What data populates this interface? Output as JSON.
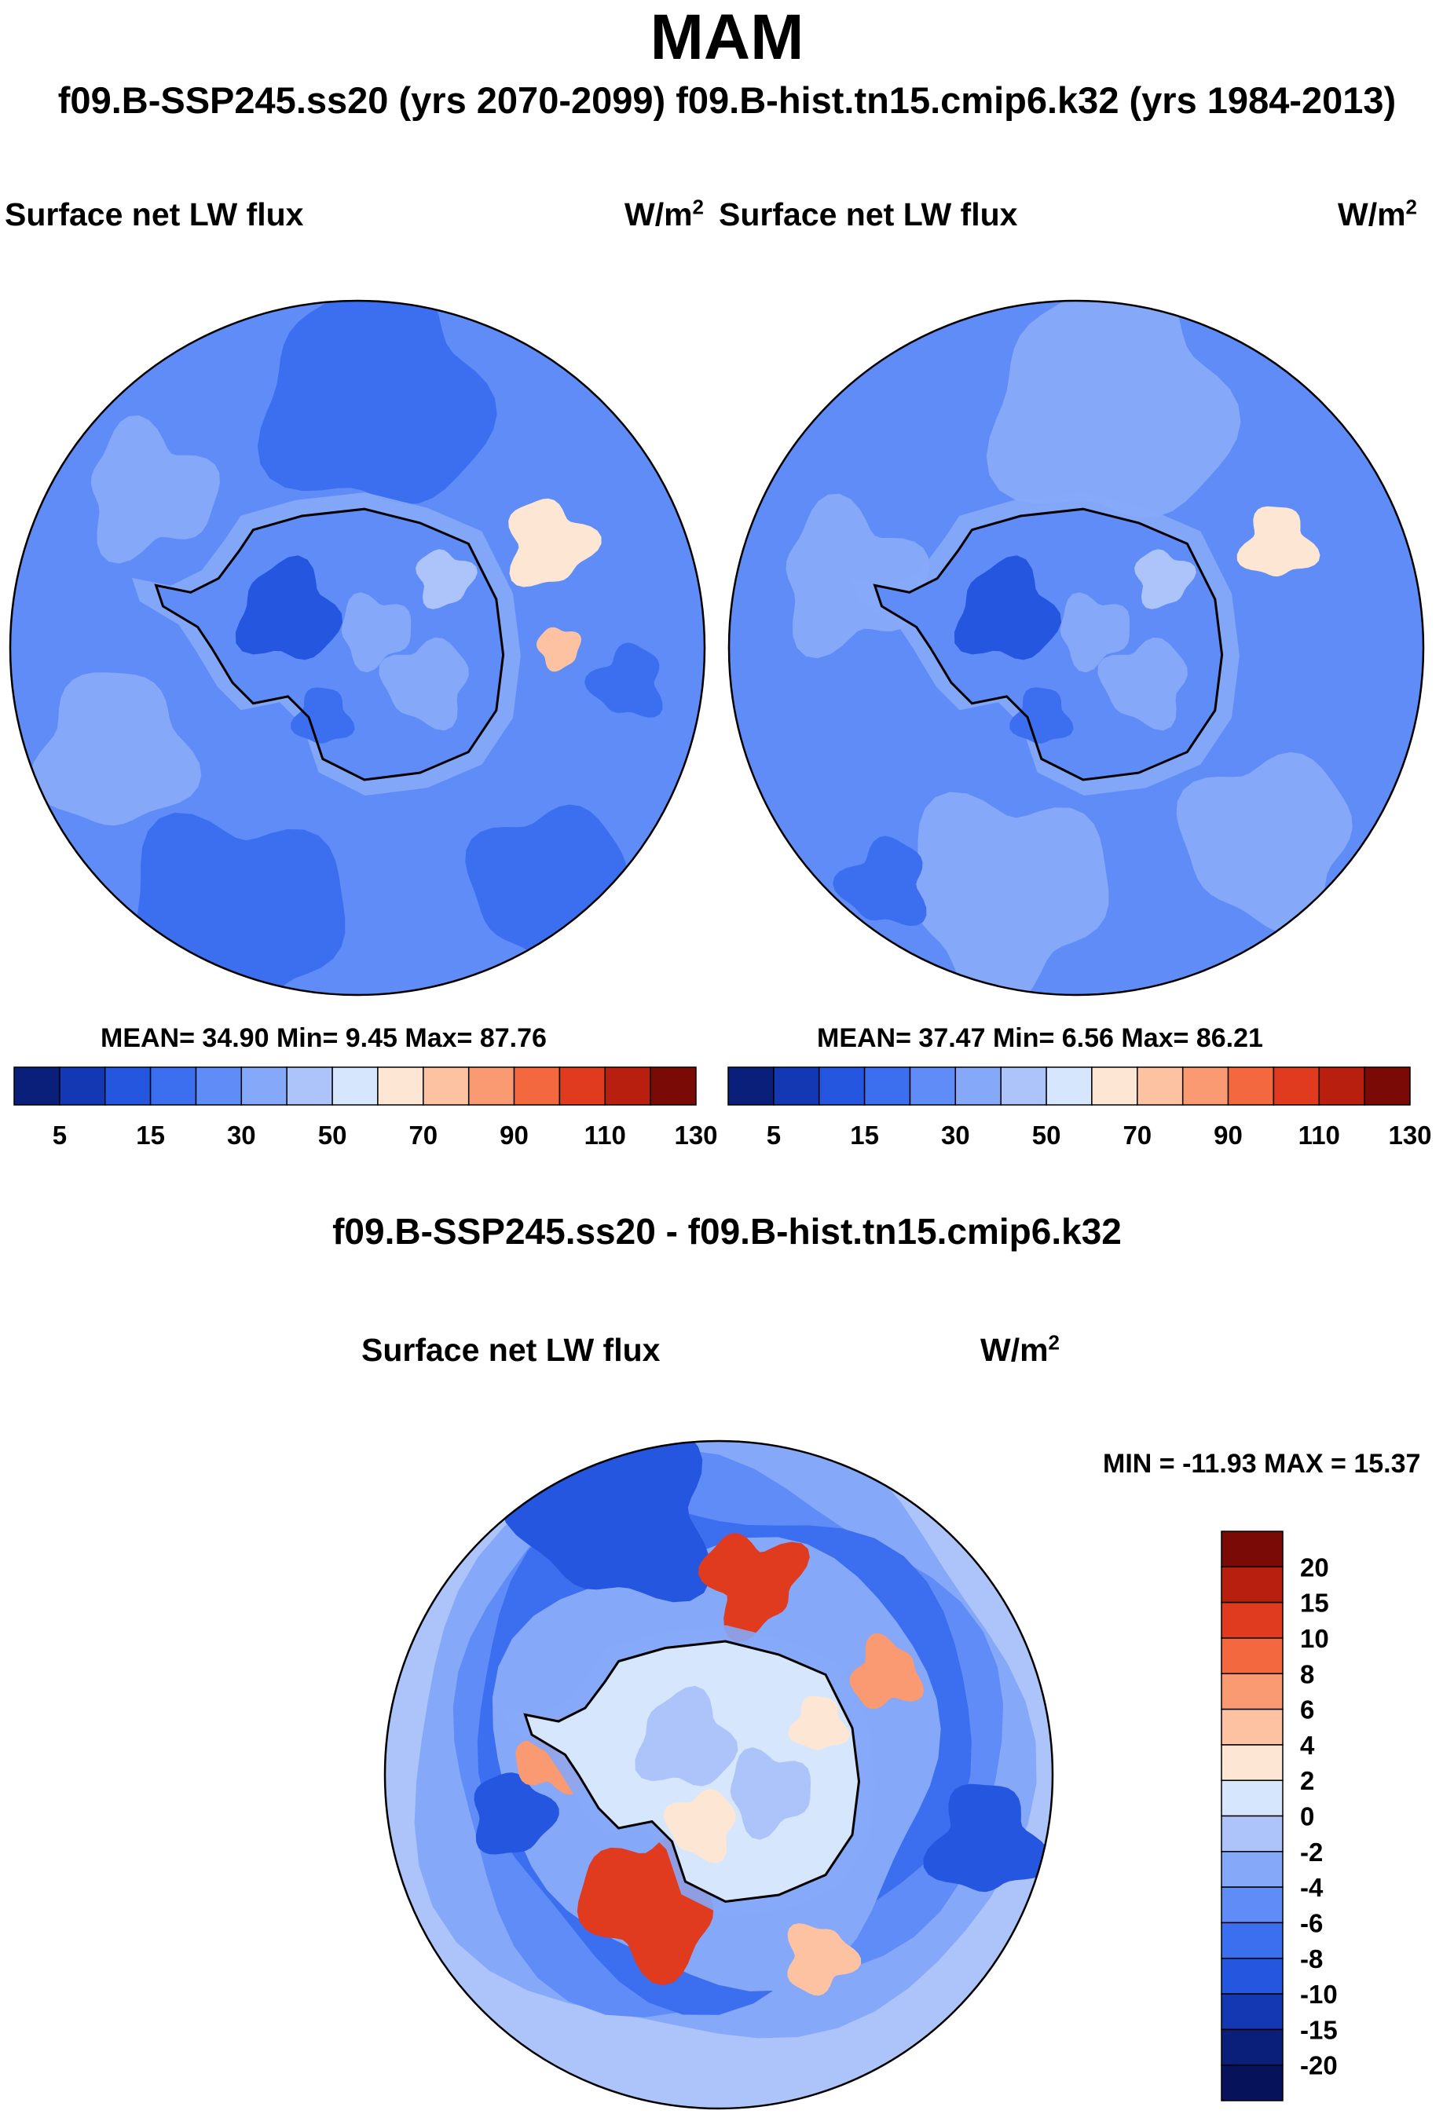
{
  "figure": {
    "title": "MAM",
    "subtitle": "f09.B-SSP245.ss20 (yrs 2070-2099)  f09.B-hist.tn15.cmip6.k32 (yrs 1984-2013)",
    "diff_heading": "f09.B-SSP245.ss20 - f09.B-hist.tn15.cmip6.k32"
  },
  "panels": {
    "left": {
      "variable": "Surface net LW flux",
      "units": "W/m",
      "units_sup": "2",
      "stats": "MEAN=  34.90  Min=   9.45  Max=  87.76"
    },
    "right": {
      "variable": "Surface net LW flux",
      "units": "W/m",
      "units_sup": "2",
      "stats": "MEAN=  37.47  Min=   6.56  Max=  86.21"
    },
    "diff": {
      "variable": "Surface net LW flux",
      "units": "W/m",
      "units_sup": "2",
      "minmax": "MIN = -11.93 MAX =  15.37"
    }
  },
  "chart_data": [
    {
      "type": "heatmap",
      "projection": "south polar stereographic",
      "title": "Surface net LW flux",
      "units": "W/m^2",
      "case": "f09.B-SSP245.ss20 (yrs 2070-2099)",
      "mean": 34.9,
      "min": 9.45,
      "max": 87.76,
      "colorbar_levels": [
        5,
        10,
        15,
        20,
        30,
        40,
        50,
        60,
        70,
        80,
        90,
        100,
        110,
        120,
        130
      ],
      "colorbar_labels": [
        "5",
        "15",
        "30",
        "50",
        "70",
        "90",
        "110",
        "130"
      ],
      "colors": [
        "#0a1f7a",
        "#1438b4",
        "#2456e0",
        "#3c6ff0",
        "#5f8cf6",
        "#86a8f8",
        "#adc4fb",
        "#d6e6fc",
        "#fde6d4",
        "#fcc2a2",
        "#f99a72",
        "#f4683f",
        "#e03a1f",
        "#b81f0f",
        "#7a0a06"
      ]
    },
    {
      "type": "heatmap",
      "projection": "south polar stereographic",
      "title": "Surface net LW flux",
      "units": "W/m^2",
      "case": "f09.B-hist.tn15.cmip6.k32 (yrs 1984-2013)",
      "mean": 37.47,
      "min": 6.56,
      "max": 86.21,
      "colorbar_levels": [
        5,
        10,
        15,
        20,
        30,
        40,
        50,
        60,
        70,
        80,
        90,
        100,
        110,
        120,
        130
      ],
      "colorbar_labels": [
        "5",
        "15",
        "30",
        "50",
        "70",
        "90",
        "110",
        "130"
      ],
      "colors": [
        "#0a1f7a",
        "#1438b4",
        "#2456e0",
        "#3c6ff0",
        "#5f8cf6",
        "#86a8f8",
        "#adc4fb",
        "#d6e6fc",
        "#fde6d4",
        "#fcc2a2",
        "#f99a72",
        "#f4683f",
        "#e03a1f",
        "#b81f0f",
        "#7a0a06"
      ]
    },
    {
      "type": "heatmap",
      "projection": "south polar stereographic",
      "title": "Surface net LW flux",
      "units": "W/m^2",
      "case": "f09.B-SSP245.ss20 - f09.B-hist.tn15.cmip6.k32",
      "min": -11.93,
      "max": 15.37,
      "colorbar_labels": [
        "20",
        "15",
        "10",
        "8",
        "6",
        "4",
        "2",
        "0",
        "-2",
        "-4",
        "-6",
        "-8",
        "-10",
        "-15",
        "-20"
      ],
      "colors": [
        "#7a0a06",
        "#b81f0f",
        "#e03a1f",
        "#f4683f",
        "#f99a72",
        "#fcc2a2",
        "#fde6d4",
        "#d6e6fc",
        "#adc4fb",
        "#86a8f8",
        "#5f8cf6",
        "#3c6ff0",
        "#2456e0",
        "#1438b4",
        "#0a1f7a",
        "#06125a"
      ]
    }
  ]
}
